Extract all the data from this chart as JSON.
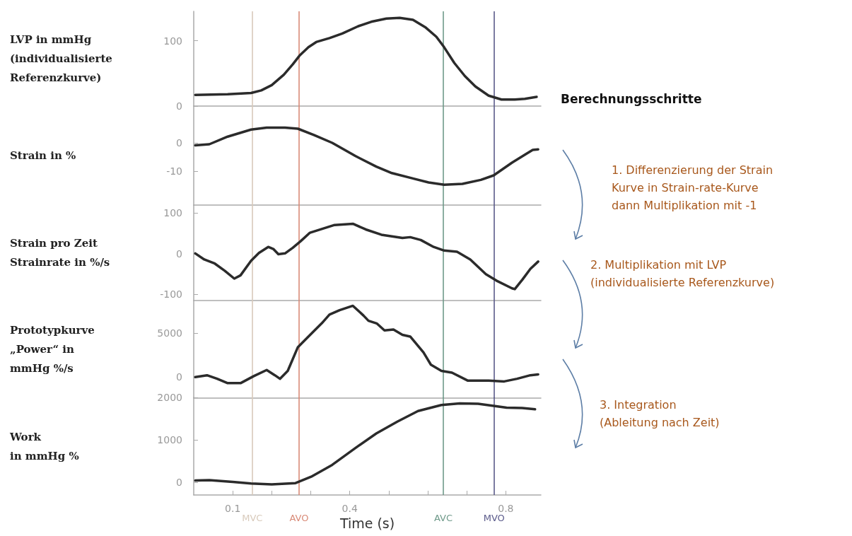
{
  "chart_data": [
    {
      "type": "line",
      "ylabel": "LVP in mmHg\n(individualisierte\nReferenzkurve)",
      "xlim": [
        0,
        0.89
      ],
      "ylim": [
        0,
        145
      ],
      "yticks": [
        0,
        100
      ],
      "tick_labels": "y",
      "annotations": [
        "Berechnungsschritte",
        "1. Differenzierung der Strain\nKurve in Strain-rate-Kurve\ndann Multiplikation mit -1",
        "2. Multiplikation mit LVP\n(individualisierte Referenzkurve)",
        "3. Integration\n(Ableitung nach Zeit)"
      ],
      "ref_lines": [
        {
          "axis": "x",
          "value": 0.15,
          "color": "#d8cabb"
        },
        {
          "axis": "x",
          "value": 0.27,
          "color": "#d98b78"
        },
        {
          "axis": "x",
          "value": 0.64,
          "color": "#6f9a8a"
        },
        {
          "axis": "x",
          "value": 0.77,
          "color": "#5a5a8a"
        }
      ],
      "x": [
        0.004,
        0.087,
        0.147,
        0.173,
        0.2,
        0.231,
        0.254,
        0.271,
        0.294,
        0.314,
        0.348,
        0.381,
        0.421,
        0.455,
        0.494,
        0.528,
        0.562,
        0.595,
        0.622,
        0.642,
        0.668,
        0.695,
        0.722,
        0.756,
        0.789,
        0.823,
        0.849,
        0.879
      ],
      "series": [
        {
          "color": "#2b2b2b",
          "values": [
            17,
            18,
            20,
            24,
            32,
            48,
            64,
            77,
            90,
            98,
            104,
            111,
            122,
            129,
            134,
            135,
            132,
            120,
            106,
            90,
            66,
            46,
            30,
            16,
            10,
            10,
            11,
            14
          ]
        }
      ]
    },
    {
      "type": "line",
      "ylabel": "Strain in %",
      "xlim": [
        0,
        0.89
      ],
      "ylim": [
        -22,
        13
      ],
      "yticks": [
        -10,
        0
      ],
      "tick_labels": "y",
      "ref_lines": [
        {
          "axis": "x",
          "value": 0.15,
          "color": "#d8cabb"
        },
        {
          "axis": "x",
          "value": 0.27,
          "color": "#d98b78"
        },
        {
          "axis": "x",
          "value": 0.64,
          "color": "#6f9a8a"
        },
        {
          "axis": "x",
          "value": 0.77,
          "color": "#5a5a8a"
        }
      ],
      "x": [
        0.004,
        0.04,
        0.087,
        0.147,
        0.187,
        0.234,
        0.267,
        0.308,
        0.355,
        0.415,
        0.468,
        0.508,
        0.562,
        0.602,
        0.642,
        0.689,
        0.736,
        0.769,
        0.816,
        0.849,
        0.869,
        0.883
      ],
      "series": [
        {
          "color": "#2b2b2b",
          "values": [
            -0.9,
            -0.5,
            2.2,
            4.7,
            5.4,
            5.4,
            5,
            2.8,
            0,
            -4.7,
            -8.4,
            -10.7,
            -12.6,
            -14,
            -14.8,
            -14.5,
            -13.1,
            -11.5,
            -7,
            -4.2,
            -2.5,
            -2.3
          ]
        }
      ]
    },
    {
      "type": "line",
      "ylabel": "Strain pro Zeit\nStrainrate in %/s",
      "xlim": [
        0,
        0.89
      ],
      "ylim": [
        -115,
        120
      ],
      "yticks": [
        -100,
        0,
        100
      ],
      "tick_labels": "y",
      "ref_lines": [
        {
          "axis": "x",
          "value": 0.15,
          "color": "#d8cabb"
        },
        {
          "axis": "x",
          "value": 0.27,
          "color": "#d98b78"
        },
        {
          "axis": "x",
          "value": 0.64,
          "color": "#6f9a8a"
        },
        {
          "axis": "x",
          "value": 0.77,
          "color": "#5a5a8a"
        }
      ],
      "x": [
        0.004,
        0.027,
        0.054,
        0.08,
        0.104,
        0.12,
        0.147,
        0.167,
        0.191,
        0.204,
        0.217,
        0.234,
        0.254,
        0.274,
        0.298,
        0.328,
        0.361,
        0.408,
        0.441,
        0.481,
        0.535,
        0.555,
        0.582,
        0.615,
        0.642,
        0.675,
        0.709,
        0.749,
        0.776,
        0.816,
        0.823,
        0.843,
        0.863,
        0.883
      ],
      "series": [
        {
          "color": "#2b2b2b",
          "values": [
            1,
            -14,
            -24,
            -42,
            -61,
            -53,
            -17,
            2,
            17,
            12,
            -1,
            1,
            15,
            31,
            52,
            61,
            71,
            74,
            60,
            47,
            39,
            41,
            34,
            17,
            8,
            5,
            -14,
            -50,
            -66,
            -85,
            -87,
            -63,
            -37,
            -19
          ]
        }
      ]
    },
    {
      "type": "line",
      "ylabel": "Prototypkurve\n„Power“ in\nmmHg %/s",
      "xlim": [
        0,
        0.89
      ],
      "ylim": [
        -2400,
        8700
      ],
      "yticks": [
        0,
        5000
      ],
      "tick_labels": "y",
      "ref_lines": [
        {
          "axis": "x",
          "value": 0.15,
          "color": "#d8cabb"
        },
        {
          "axis": "x",
          "value": 0.27,
          "color": "#d98b78"
        },
        {
          "axis": "x",
          "value": 0.64,
          "color": "#6f9a8a"
        },
        {
          "axis": "x",
          "value": 0.77,
          "color": "#5a5a8a"
        }
      ],
      "x": [
        0.004,
        0.034,
        0.06,
        0.087,
        0.12,
        0.154,
        0.187,
        0.208,
        0.221,
        0.241,
        0.267,
        0.294,
        0.328,
        0.348,
        0.374,
        0.408,
        0.435,
        0.448,
        0.469,
        0.489,
        0.512,
        0.535,
        0.555,
        0.589,
        0.608,
        0.635,
        0.662,
        0.702,
        0.756,
        0.796,
        0.829,
        0.863,
        0.883
      ],
      "series": [
        {
          "color": "#2b2b2b",
          "values": [
            0,
            200,
            -200,
            -700,
            -700,
            100,
            800,
            200,
            -200,
            700,
            3400,
            4600,
            6100,
            7100,
            7600,
            8100,
            7000,
            6400,
            6100,
            5300,
            5400,
            4800,
            4600,
            2800,
            1400,
            700,
            500,
            -400,
            -400,
            -500,
            -200,
            200,
            300
          ]
        }
      ]
    },
    {
      "type": "line",
      "ylabel": "Work\nin mmHg %",
      "xlabel": "Time (s)",
      "xlim": [
        0,
        0.89
      ],
      "ylim": [
        -300,
        2000
      ],
      "yticks": [
        0,
        1000,
        2000
      ],
      "xticks": [
        0.1,
        {
          "value": 0.2,
          "label": null
        },
        {
          "value": 0.3,
          "label": null
        },
        0.4,
        {
          "value": 0.5,
          "label": null
        },
        {
          "value": 0.6,
          "label": null
        },
        {
          "value": 0.7,
          "label": null
        },
        0.8
      ],
      "ref_lines": [
        {
          "axis": "x",
          "value": 0.15,
          "label": "MVC",
          "color": "#d8cabb"
        },
        {
          "axis": "x",
          "value": 0.27,
          "label": "AVO",
          "color": "#d98b78"
        },
        {
          "axis": "x",
          "value": 0.64,
          "label": "AVC",
          "color": "#6f9a8a"
        },
        {
          "axis": "x",
          "value": 0.77,
          "label": "MVO",
          "color": "#5a5a8a"
        }
      ],
      "x": [
        0.004,
        0.04,
        0.1,
        0.147,
        0.2,
        0.261,
        0.301,
        0.355,
        0.415,
        0.468,
        0.522,
        0.575,
        0.635,
        0.682,
        0.729,
        0.769,
        0.802,
        0.842,
        0.875
      ],
      "series": [
        {
          "color": "#2b2b2b",
          "values": [
            40,
            50,
            10,
            -30,
            -50,
            -20,
            130,
            410,
            810,
            1150,
            1430,
            1680,
            1820,
            1860,
            1850,
            1800,
            1760,
            1750,
            1720
          ]
        }
      ]
    }
  ]
}
